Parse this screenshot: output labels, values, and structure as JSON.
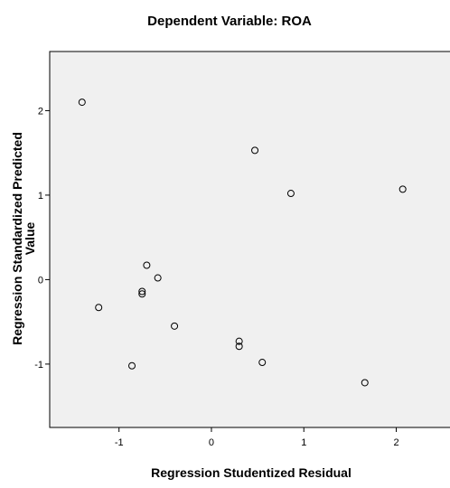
{
  "chart_data": {
    "type": "scatter",
    "title": "Dependent Variable: ROA",
    "xlabel": "Regression Studentized Residual",
    "ylabel_lines": [
      "Regression Standardized Predicted",
      "Value"
    ],
    "xlim": [
      -1.75,
      2.65
    ],
    "ylim": [
      -1.75,
      2.7
    ],
    "xticks": [
      -1,
      0,
      1,
      2
    ],
    "yticks": [
      -1,
      0,
      1,
      2
    ],
    "grid": false,
    "legend": "none",
    "plot_background": "#f0f0f0",
    "marker_style": "open-circle",
    "points": [
      {
        "x": -1.4,
        "y": 2.1
      },
      {
        "x": 0.47,
        "y": 1.53
      },
      {
        "x": 0.86,
        "y": 1.02
      },
      {
        "x": 2.07,
        "y": 1.07
      },
      {
        "x": -0.7,
        "y": 0.17
      },
      {
        "x": -0.58,
        "y": 0.02
      },
      {
        "x": -0.75,
        "y": -0.14
      },
      {
        "x": -0.75,
        "y": -0.17
      },
      {
        "x": -1.22,
        "y": -0.33
      },
      {
        "x": -0.4,
        "y": -0.55
      },
      {
        "x": 0.3,
        "y": -0.73
      },
      {
        "x": 0.3,
        "y": -0.79
      },
      {
        "x": 0.55,
        "y": -0.98
      },
      {
        "x": -0.86,
        "y": -1.02
      },
      {
        "x": 1.66,
        "y": -1.22
      }
    ]
  }
}
